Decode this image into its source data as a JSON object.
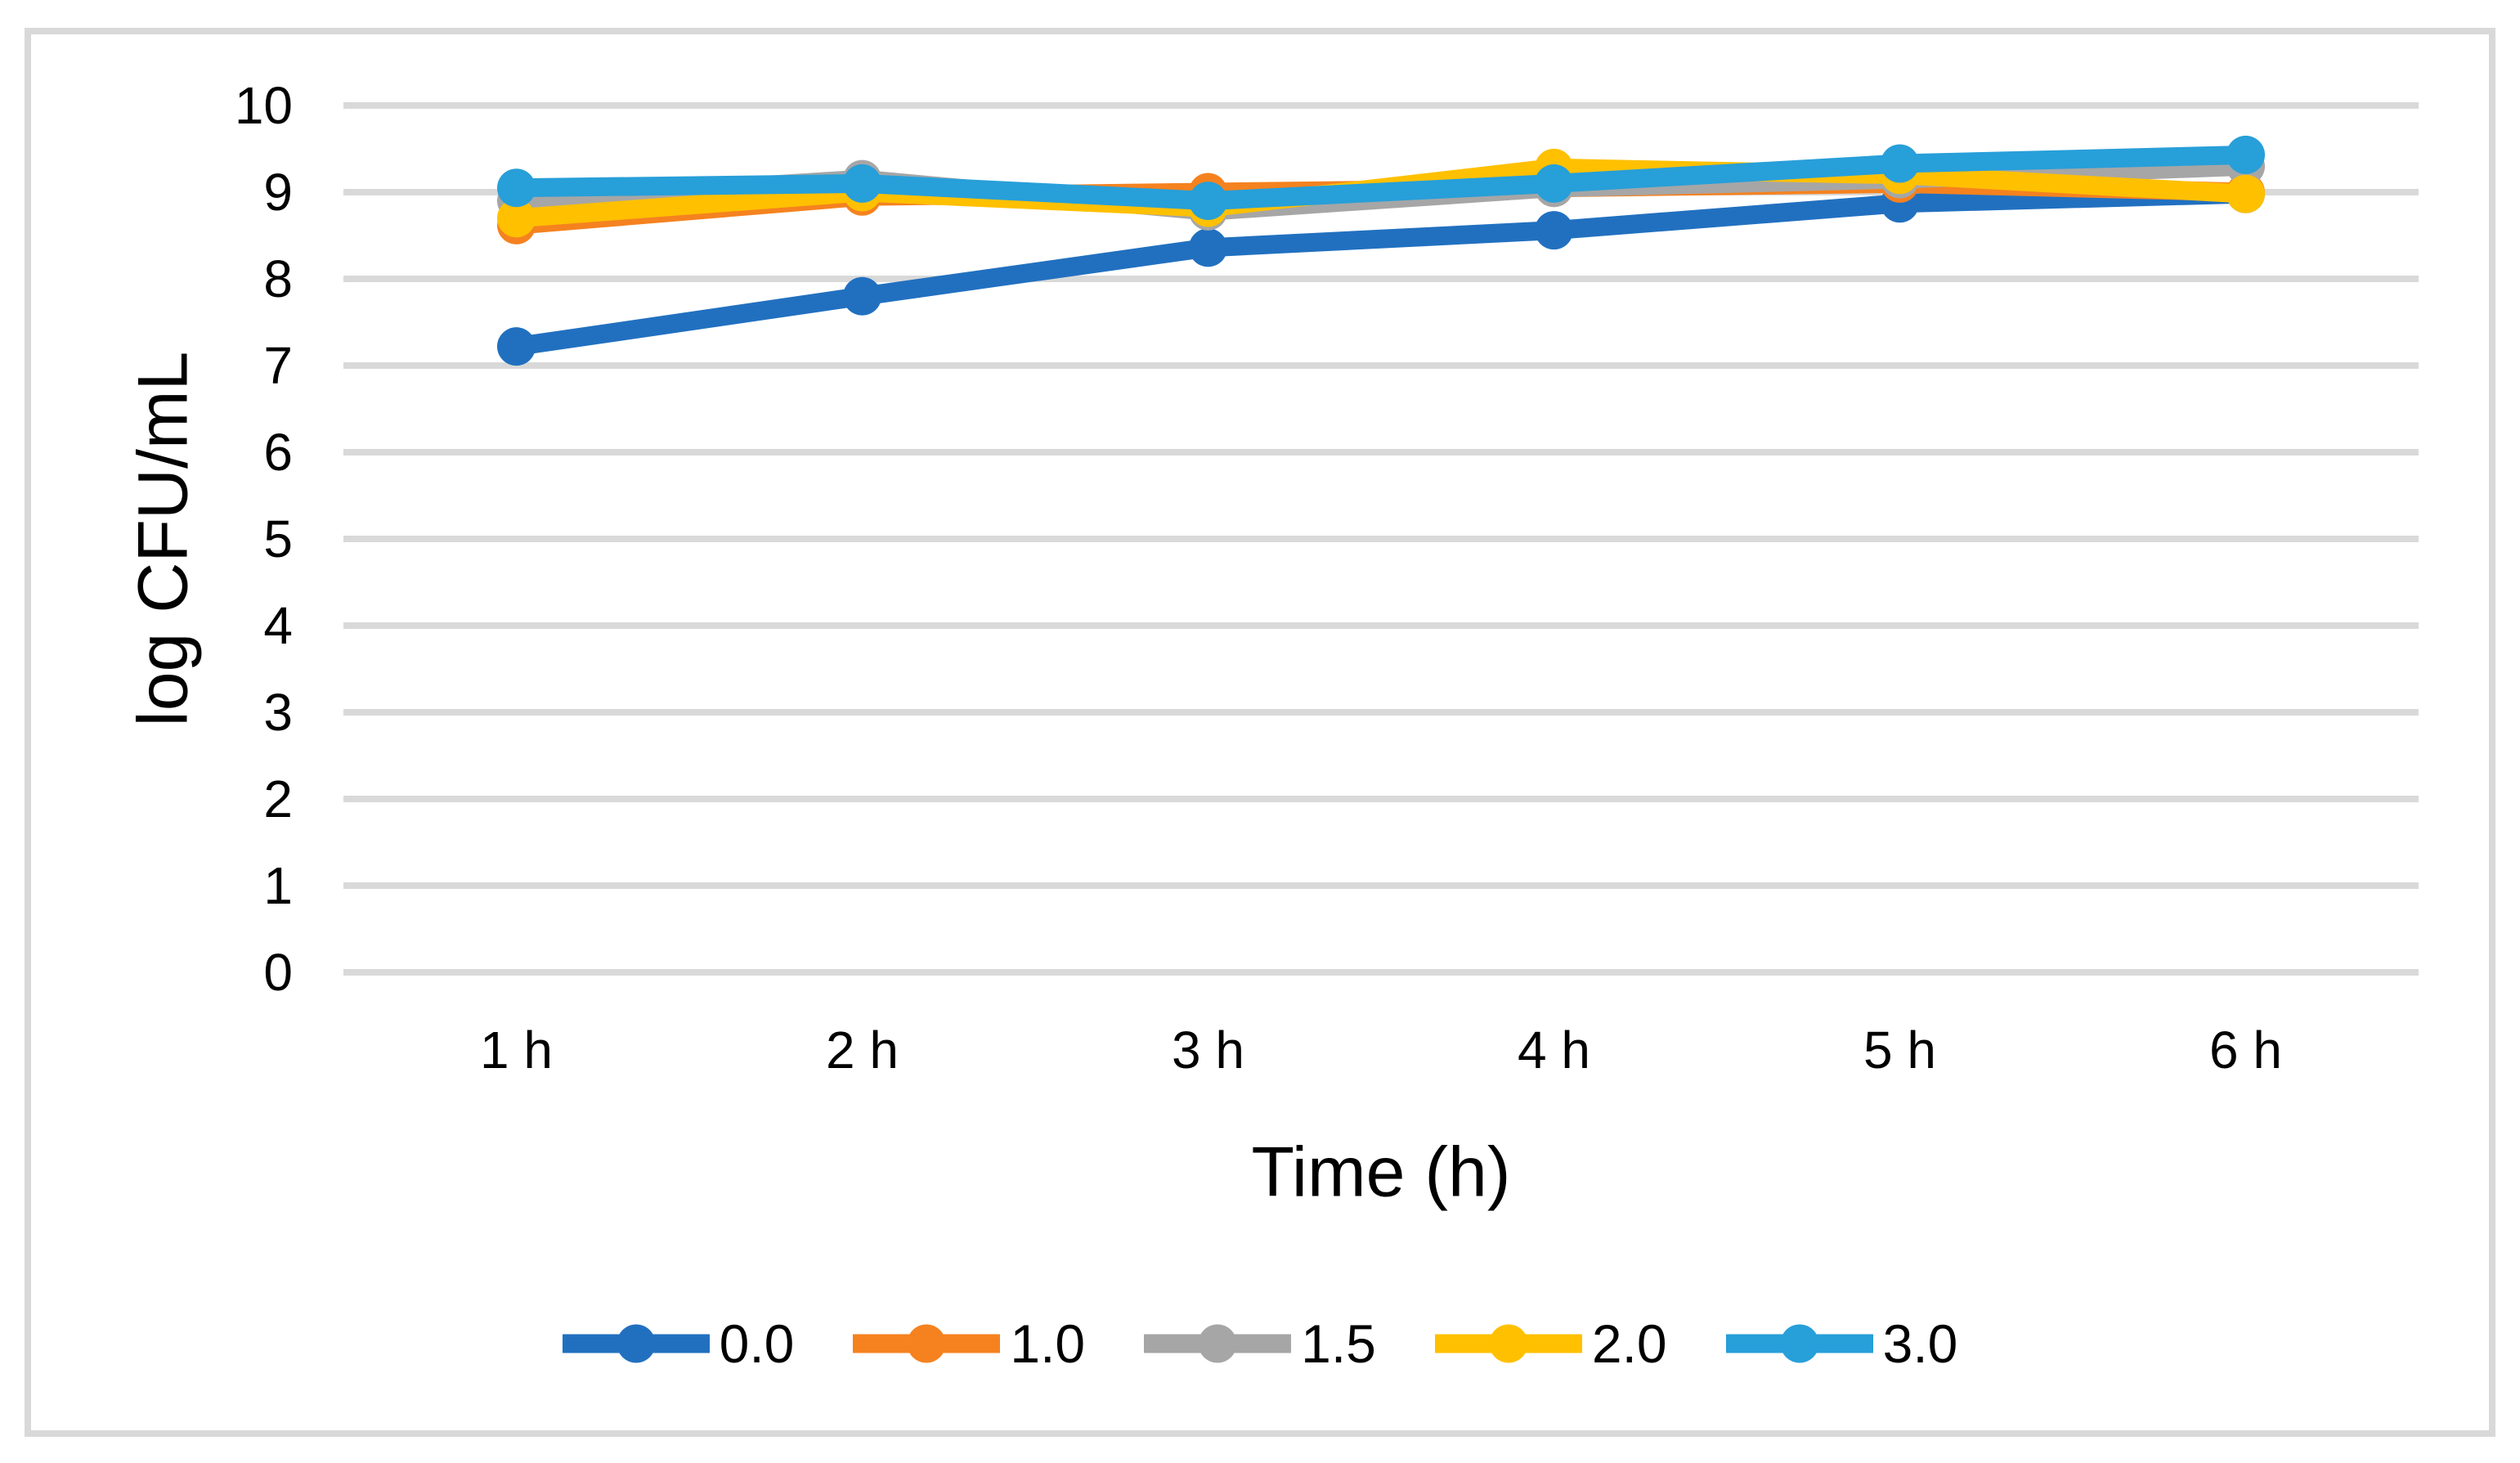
{
  "page": {
    "background": "#FFFFFF",
    "border_color": "#D9D9D9"
  },
  "chart_data": {
    "type": "line",
    "title": "",
    "xlabel": "Time (h)",
    "ylabel": "log CFU/mL",
    "categories": [
      "1 h",
      "2 h",
      "3 h",
      "4 h",
      "5 h",
      "6 h"
    ],
    "series": [
      {
        "name": "0.0",
        "color": "#2170C0",
        "values": [
          7.22,
          7.8,
          8.36,
          8.56,
          8.87,
          8.98
        ]
      },
      {
        "name": "1.0",
        "color": "#F5821F",
        "values": [
          8.62,
          8.95,
          9.0,
          9.05,
          9.1,
          9.0
        ]
      },
      {
        "name": "1.5",
        "color": "#A6A6A6",
        "values": [
          8.9,
          9.15,
          8.78,
          9.05,
          9.15,
          9.3
        ]
      },
      {
        "name": "2.0",
        "color": "#FFC000",
        "values": [
          8.7,
          9.0,
          8.82,
          9.28,
          9.2,
          8.98
        ]
      },
      {
        "name": "3.0",
        "color": "#279FD9",
        "values": [
          9.05,
          9.1,
          8.9,
          9.1,
          9.33,
          9.43
        ]
      }
    ],
    "ylim": [
      0,
      10
    ],
    "yticks": [
      "0",
      "1",
      "2",
      "3",
      "4",
      "5",
      "6",
      "7",
      "8",
      "9",
      "10"
    ],
    "grid": true,
    "gridline_color": "#D9D9D9",
    "legend_position": "bottom",
    "legend_labels": [
      "0.0",
      "1.0",
      "1.5",
      "2.0",
      "3.0"
    ]
  }
}
